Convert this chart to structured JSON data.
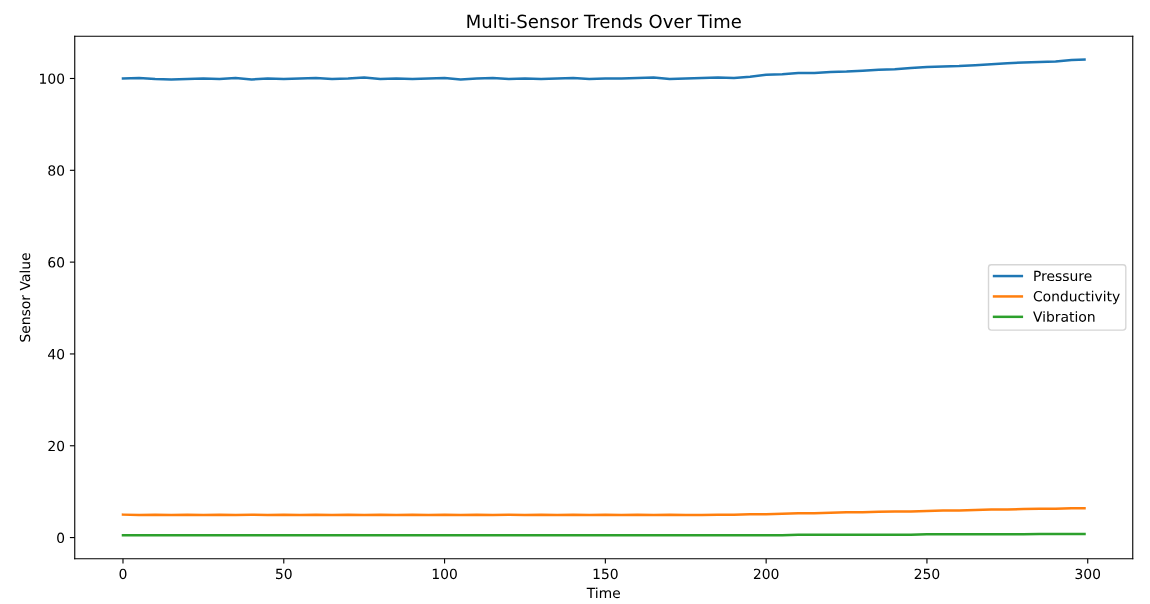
{
  "chart_data": {
    "type": "line",
    "title": "Multi-Sensor Trends Over Time",
    "xlabel": "Time",
    "ylabel": "Sensor Value",
    "x": [
      0,
      5,
      10,
      15,
      20,
      25,
      30,
      35,
      40,
      45,
      50,
      55,
      60,
      65,
      70,
      75,
      80,
      85,
      90,
      95,
      100,
      105,
      110,
      115,
      120,
      125,
      130,
      135,
      140,
      145,
      150,
      155,
      160,
      165,
      170,
      175,
      180,
      185,
      190,
      195,
      200,
      205,
      210,
      215,
      220,
      225,
      230,
      235,
      240,
      245,
      250,
      255,
      260,
      265,
      270,
      275,
      280,
      285,
      290,
      295,
      299
    ],
    "series": [
      {
        "name": "Pressure",
        "color": "#1f77b4",
        "values": [
          100.0,
          100.1,
          99.9,
          99.8,
          99.9,
          100.0,
          99.9,
          100.1,
          99.8,
          100.0,
          99.9,
          100.0,
          100.1,
          99.9,
          100.0,
          100.2,
          99.9,
          100.0,
          99.9,
          100.0,
          100.1,
          99.8,
          100.0,
          100.1,
          99.9,
          100.0,
          99.9,
          100.0,
          100.1,
          99.9,
          100.0,
          100.0,
          100.1,
          100.2,
          99.9,
          100.0,
          100.1,
          100.2,
          100.1,
          100.4,
          100.8,
          100.9,
          101.2,
          101.2,
          101.4,
          101.5,
          101.7,
          101.9,
          102.0,
          102.3,
          102.5,
          102.6,
          102.7,
          102.9,
          103.1,
          103.3,
          103.5,
          103.6,
          103.7,
          104.0,
          104.1
        ]
      },
      {
        "name": "Conductivity",
        "color": "#ff7f0e",
        "values": [
          5.0,
          4.9,
          5.0,
          4.9,
          5.0,
          4.9,
          5.0,
          4.9,
          5.0,
          4.9,
          5.0,
          4.9,
          5.0,
          4.9,
          5.0,
          4.9,
          5.0,
          4.9,
          5.0,
          4.9,
          5.0,
          4.9,
          5.0,
          4.9,
          5.0,
          4.9,
          5.0,
          4.9,
          5.0,
          4.9,
          5.0,
          4.9,
          5.0,
          4.9,
          5.0,
          4.9,
          4.9,
          5.0,
          5.0,
          5.1,
          5.1,
          5.2,
          5.3,
          5.3,
          5.4,
          5.5,
          5.5,
          5.6,
          5.7,
          5.7,
          5.8,
          5.9,
          5.9,
          6.0,
          6.1,
          6.1,
          6.2,
          6.3,
          6.3,
          6.4,
          6.4
        ]
      },
      {
        "name": "Vibration",
        "color": "#2ca02c",
        "values": [
          0.5,
          0.5,
          0.5,
          0.5,
          0.5,
          0.5,
          0.5,
          0.5,
          0.5,
          0.5,
          0.5,
          0.5,
          0.5,
          0.5,
          0.5,
          0.5,
          0.5,
          0.5,
          0.5,
          0.5,
          0.5,
          0.5,
          0.5,
          0.5,
          0.5,
          0.5,
          0.5,
          0.5,
          0.5,
          0.5,
          0.5,
          0.5,
          0.5,
          0.5,
          0.5,
          0.5,
          0.5,
          0.5,
          0.5,
          0.5,
          0.5,
          0.5,
          0.6,
          0.6,
          0.6,
          0.6,
          0.6,
          0.6,
          0.6,
          0.6,
          0.7,
          0.7,
          0.7,
          0.7,
          0.7,
          0.7,
          0.7,
          0.8,
          0.8,
          0.8,
          0.8
        ]
      }
    ],
    "xlim": [
      -15,
      314
    ],
    "xticks": [
      0,
      50,
      100,
      150,
      200,
      250,
      300
    ],
    "ylim": [
      -4.6,
      109.2
    ],
    "yticks": [
      0,
      20,
      40,
      60,
      80,
      100
    ],
    "legend": "center right",
    "grid": false,
    "marker": "none",
    "line_style": "solid"
  }
}
